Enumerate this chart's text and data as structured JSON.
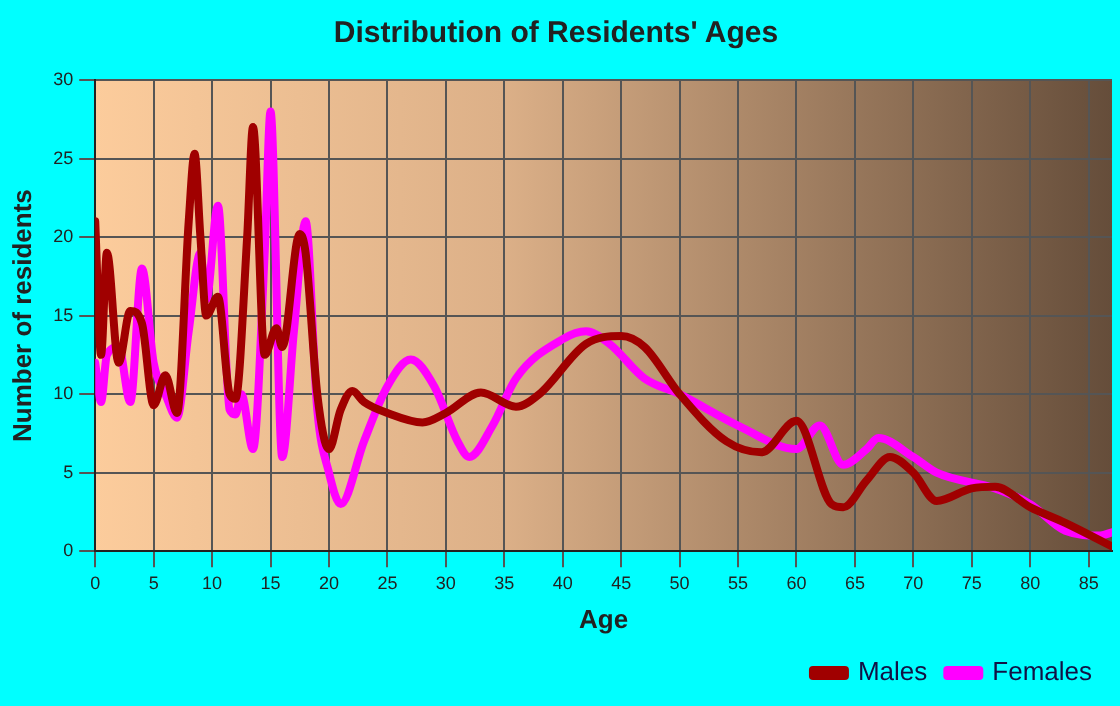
{
  "chart_data": {
    "type": "line",
    "title": "Distribution of Residents' Ages",
    "xlabel": "Age",
    "ylabel": "Number of residents",
    "xlim": [
      0,
      87
    ],
    "xticks": [
      0,
      5,
      10,
      15,
      20,
      25,
      30,
      35,
      40,
      45,
      50,
      55,
      60,
      65,
      70,
      75,
      80,
      85
    ],
    "ylim": [
      0,
      30
    ],
    "yticks": [
      0,
      5,
      10,
      15,
      20,
      25,
      30
    ],
    "grid": true,
    "legend": "bottom right",
    "marker": "none",
    "line_style": "solid",
    "series": [
      {
        "name": "Males",
        "color": "#a00000",
        "x": [
          0,
          0.5,
          1,
          2,
          3,
          4,
          5,
          6,
          7,
          8,
          8.5,
          9,
          9.5,
          10.5,
          11.5,
          12,
          13,
          13.5,
          14.5,
          15.5,
          16,
          17.5,
          18,
          19,
          20,
          21,
          22,
          23,
          25,
          28,
          30,
          33,
          36,
          38,
          42,
          45,
          47,
          50,
          54,
          57,
          60,
          63,
          64,
          66,
          68,
          70,
          72,
          75,
          77,
          80,
          83,
          87
        ],
        "values": [
          21,
          12.5,
          19,
          12,
          15.3,
          14.5,
          9.3,
          11.2,
          8.8,
          21,
          25.3,
          20,
          15,
          16.2,
          10,
          9.7,
          20,
          27,
          12.5,
          14.2,
          13,
          20.2,
          19,
          10,
          6.5,
          9,
          10.2,
          9.5,
          8.8,
          8.2,
          8.8,
          10.1,
          9.2,
          10,
          13.2,
          13.7,
          13,
          10,
          7,
          6.3,
          8.3,
          3,
          2.8,
          4.5,
          6,
          5,
          3.2,
          4,
          4.1,
          2.8,
          1.8,
          0.3
        ]
      },
      {
        "name": "Females",
        "color": "#ff00ff",
        "x": [
          0,
          0.5,
          1,
          2,
          3,
          4,
          5,
          6,
          7,
          8,
          9,
          9.5,
          10.5,
          11.5,
          12,
          12.5,
          13.5,
          14.5,
          15,
          16,
          17,
          18,
          19,
          20,
          21,
          23,
          25,
          27,
          29,
          31,
          32,
          34,
          36,
          40,
          42,
          44,
          47,
          50,
          55,
          60,
          62,
          64,
          66,
          67,
          70,
          72,
          77,
          80,
          83,
          86,
          87
        ],
        "values": [
          12,
          9.5,
          12.5,
          13,
          9.5,
          18,
          12,
          10,
          8.5,
          14,
          19,
          16,
          22,
          9,
          8.7,
          10,
          6.5,
          19,
          28,
          6,
          14,
          21,
          9,
          5,
          3,
          7,
          10.5,
          12.2,
          10.5,
          7,
          6,
          8,
          11,
          13.5,
          14,
          13.2,
          11,
          10,
          8,
          6.5,
          8,
          5.5,
          6.5,
          7.2,
          6,
          5,
          4,
          3,
          1.3,
          1,
          1.2
        ]
      }
    ]
  }
}
